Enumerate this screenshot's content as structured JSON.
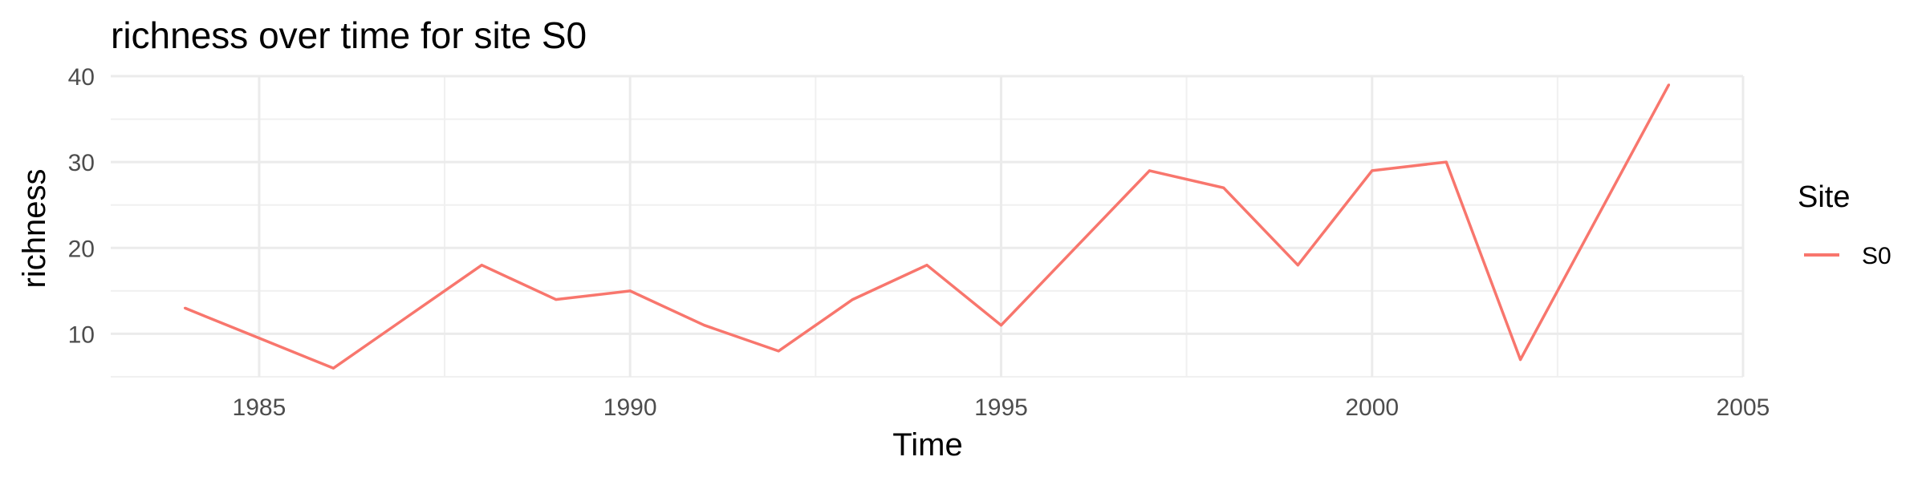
{
  "chart_data": {
    "type": "line",
    "title": "richness over time for site S0",
    "xlabel": "Time",
    "ylabel": "richness",
    "xlim": [
      1983,
      2005
    ],
    "ylim": [
      5,
      40
    ],
    "x_ticks": [
      1985,
      1990,
      1995,
      2000,
      2005
    ],
    "y_ticks": [
      10,
      20,
      30,
      40
    ],
    "grid": true,
    "legend": {
      "title": "Site",
      "position": "right"
    },
    "series": [
      {
        "name": "S0",
        "color": "#F8766D",
        "x": [
          1984,
          1985,
          1986,
          1987,
          1988,
          1989,
          1990,
          1991,
          1992,
          1993,
          1994,
          1995,
          1996,
          1997,
          1998,
          1999,
          2000,
          2001,
          2002,
          2003,
          2004
        ],
        "y": [
          13,
          9.5,
          6,
          12,
          18,
          14,
          15,
          11,
          8,
          14,
          18,
          11,
          20,
          29,
          27,
          18,
          29,
          30,
          7,
          23,
          39
        ]
      }
    ]
  }
}
